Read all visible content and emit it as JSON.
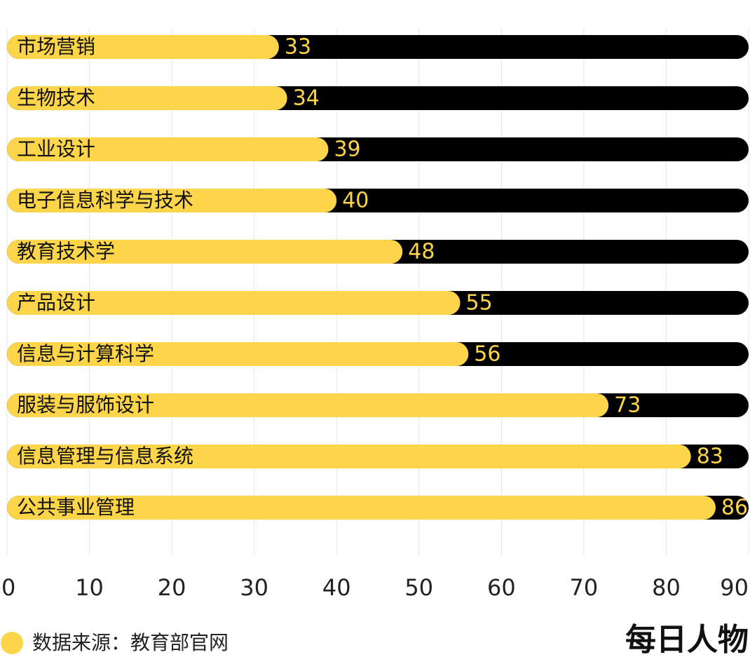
{
  "chart_data": {
    "type": "bar",
    "orientation": "horizontal",
    "categories": [
      "市场营销",
      "生物技术",
      "工业设计",
      "电子信息科学与技术",
      "教育技术学",
      "产品设计",
      "信息与计算科学",
      "服装与服饰设计",
      "信息管理与信息系统",
      "公共事业管理"
    ],
    "values": [
      33,
      34,
      39,
      40,
      48,
      55,
      56,
      73,
      83,
      86
    ],
    "color": "#fdd54b",
    "track_color": "#000000",
    "xlim": [
      0,
      90
    ],
    "xticks": [
      0,
      10,
      20,
      30,
      40,
      50,
      60,
      70,
      80,
      90
    ],
    "grid": true,
    "source": "数据来源：教育部官网"
  },
  "logo": "每日人物"
}
